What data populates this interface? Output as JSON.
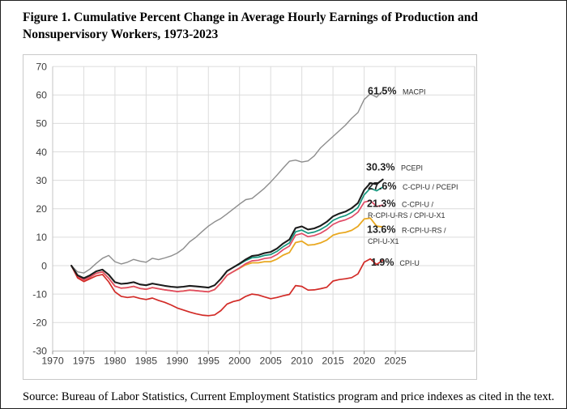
{
  "page": {
    "title_line1": "Figure 1. Cumulative Percent Change in Average Hourly Earnings of Production and",
    "title_line2": "Nonsupervisory Workers, 1973-2023",
    "source": "Source: Bureau of Labor Statistics, Current Employment Statistics program and price indexes as cited in the text."
  },
  "chart_data": {
    "type": "line",
    "title": "Cumulative Percent Change in Average Hourly Earnings of Production and Nonsupervisory Workers, 1973-2023",
    "xlabel": "",
    "ylabel": "",
    "x_ticks": [
      1970,
      1975,
      1980,
      1985,
      1990,
      1995,
      2000,
      2005,
      2010,
      2015,
      2020,
      2025
    ],
    "y_ticks": [
      70,
      60,
      50,
      40,
      30,
      20,
      10,
      0,
      -10,
      -20,
      -30
    ],
    "ylim": [
      -30,
      70
    ],
    "grid": true,
    "legend_position": "right-inline-labels",
    "years": [
      1973,
      1974,
      1975,
      1976,
      1977,
      1978,
      1979,
      1980,
      1981,
      1982,
      1983,
      1984,
      1985,
      1986,
      1987,
      1988,
      1989,
      1990,
      1991,
      1992,
      1993,
      1994,
      1995,
      1996,
      1997,
      1998,
      1999,
      2000,
      2001,
      2002,
      2003,
      2004,
      2005,
      2006,
      2007,
      2008,
      2009,
      2010,
      2011,
      2012,
      2013,
      2014,
      2015,
      2016,
      2017,
      2018,
      2019,
      2020,
      2021,
      2022,
      2023
    ],
    "series": [
      {
        "name": "MACPI",
        "color": "#8d8d8d",
        "width": 1.4,
        "values": [
          0,
          -2.2,
          -2.6,
          -1.2,
          0.8,
          2.6,
          3.6,
          1.4,
          0.6,
          1.2,
          2.2,
          1.6,
          1.2,
          2.6,
          2.1,
          2.7,
          3.4,
          4.4,
          6.0,
          8.4,
          10.0,
          12.0,
          13.9,
          15.4,
          16.6,
          18.2,
          19.9,
          21.6,
          23.2,
          23.6,
          25.4,
          27.2,
          29.4,
          31.8,
          34.3,
          36.7,
          37.1,
          36.4,
          36.8,
          38.6,
          41.4,
          43.4,
          45.4,
          47.4,
          49.4,
          51.8,
          53.8,
          58.4,
          60.4,
          59.2,
          61.5
        ]
      },
      {
        "name": "PCEPI",
        "color": "#1c1c1c",
        "width": 2.1,
        "values": [
          0,
          -3.4,
          -4.4,
          -3.4,
          -2.0,
          -1.4,
          -3.2,
          -5.8,
          -6.4,
          -6.2,
          -5.8,
          -6.6,
          -6.9,
          -6.3,
          -6.7,
          -7.1,
          -7.4,
          -7.6,
          -7.4,
          -7.1,
          -7.3,
          -7.5,
          -7.7,
          -6.9,
          -4.6,
          -1.9,
          -0.6,
          0.7,
          2.2,
          3.4,
          3.7,
          4.4,
          4.8,
          6.0,
          7.8,
          9.2,
          13.2,
          13.8,
          12.7,
          13.1,
          14.0,
          15.4,
          17.3,
          18.3,
          19.0,
          20.2,
          22.0,
          26.6,
          29.0,
          28.6,
          30.3
        ]
      },
      {
        "name": "C-CPI-U / PCEPI",
        "color": "#14967d",
        "width": 1.7,
        "values": [
          null,
          null,
          null,
          null,
          null,
          null,
          null,
          null,
          null,
          null,
          null,
          null,
          null,
          null,
          null,
          null,
          null,
          null,
          null,
          null,
          null,
          null,
          null,
          null,
          null,
          null,
          -0.6,
          0.5,
          1.8,
          2.8,
          3.0,
          3.6,
          3.9,
          5.0,
          6.7,
          8.0,
          11.9,
          12.5,
          11.4,
          11.8,
          12.7,
          14.0,
          15.9,
          16.9,
          17.6,
          18.7,
          20.4,
          24.9,
          27.2,
          26.3,
          27.6
        ]
      },
      {
        "name": "C-CPI-U / R-CPI-U-RS / CPI-U-X1",
        "color": "#e14b66",
        "width": 1.7,
        "values": [
          0,
          -3.8,
          -5.0,
          -4.0,
          -2.7,
          -2.2,
          -4.4,
          -7.2,
          -7.9,
          -7.7,
          -7.3,
          -8.0,
          -8.3,
          -7.7,
          -8.1,
          -8.5,
          -8.8,
          -9.1,
          -8.9,
          -8.6,
          -8.8,
          -9.0,
          -9.2,
          -8.4,
          -6.1,
          -3.4,
          -2.1,
          -0.8,
          0.7,
          1.7,
          1.9,
          2.5,
          2.8,
          3.9,
          5.6,
          6.9,
          10.7,
          11.3,
          10.2,
          10.6,
          11.4,
          12.7,
          14.5,
          15.5,
          16.1,
          17.1,
          18.8,
          22.3,
          22.9,
          20.8,
          21.3
        ]
      },
      {
        "name": "R-CPI-U-RS / CPI-U-X1",
        "color": "#e9a820",
        "width": 1.8,
        "values": [
          0,
          -3.8,
          -5.0,
          -4.0,
          -2.7,
          -2.2,
          -4.4,
          -7.2,
          -7.9,
          -7.7,
          -7.3,
          -8.0,
          -8.3,
          -7.7,
          -8.1,
          -8.5,
          -8.8,
          -9.1,
          -8.9,
          -8.6,
          -8.8,
          -9.0,
          -9.2,
          -8.4,
          -6.1,
          -3.4,
          -2.1,
          -0.9,
          0.3,
          1.0,
          1.0,
          1.4,
          1.4,
          2.3,
          3.7,
          4.6,
          8.1,
          8.6,
          7.2,
          7.4,
          8.0,
          9.0,
          10.7,
          11.4,
          11.7,
          12.4,
          13.8,
          16.4,
          16.7,
          13.9,
          13.6
        ]
      },
      {
        "name": "CPI-U",
        "color": "#d22b27",
        "width": 1.7,
        "values": [
          0,
          -4.3,
          -5.6,
          -4.6,
          -3.6,
          -3.1,
          -5.7,
          -9.2,
          -10.8,
          -11.2,
          -10.9,
          -11.5,
          -11.9,
          -11.4,
          -12.2,
          -12.9,
          -13.8,
          -14.9,
          -15.6,
          -16.3,
          -16.9,
          -17.4,
          -17.6,
          -17.3,
          -15.8,
          -13.5,
          -12.6,
          -12.1,
          -10.8,
          -10.0,
          -10.3,
          -11.0,
          -11.6,
          -11.2,
          -10.6,
          -10.1,
          -7.0,
          -7.3,
          -8.6,
          -8.5,
          -8.1,
          -7.6,
          -5.4,
          -4.9,
          -4.6,
          -4.2,
          -2.9,
          1.2,
          2.4,
          0.4,
          1.9
        ]
      }
    ],
    "annotations": [
      {
        "value": "61.5%",
        "name": "MACPI",
        "name2": "",
        "label_y": 61.4
      },
      {
        "value": "30.3%",
        "name": "PCEPI",
        "name2": "",
        "label_y": 34.7
      },
      {
        "value": "27.6%",
        "name": "C-CPI-U / PCEPI",
        "name2": "",
        "label_y": 28.0
      },
      {
        "value": "21.3%",
        "name": "C-CPI-U /",
        "name2": "R-CPI-U-RS / CPI-U-X1",
        "label_y": 21.9
      },
      {
        "value": "13.6%",
        "name": "R-CPI-U-RS /",
        "name2": "CPI-U-X1",
        "label_y": 12.8
      },
      {
        "value": "1.9%",
        "name": "CPI-U",
        "name2": "",
        "label_y": 1.2
      }
    ]
  }
}
